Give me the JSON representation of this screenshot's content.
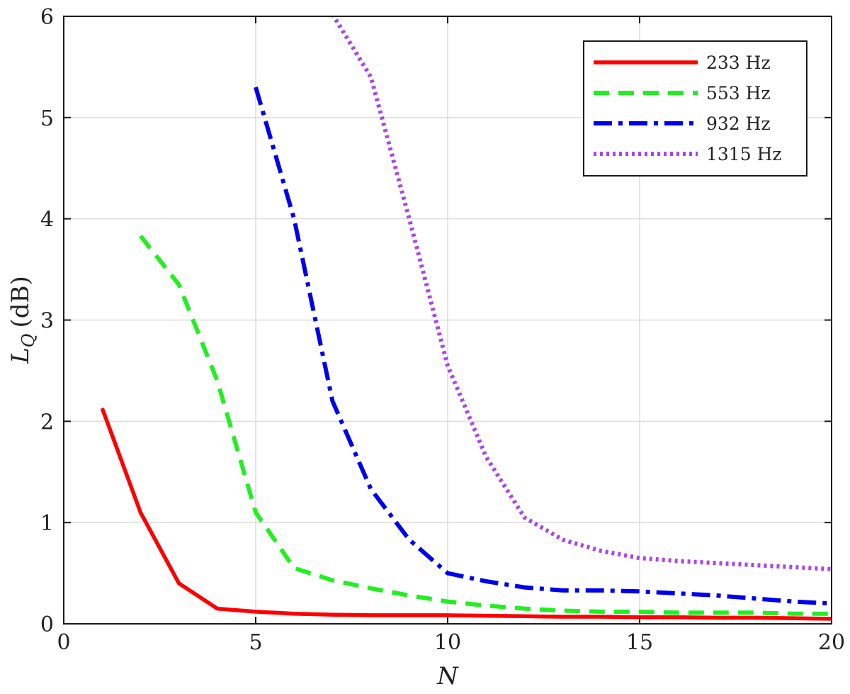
{
  "chart_data": {
    "type": "line",
    "xlabel": "N",
    "ylabel": "L",
    "ylabel_subscript": "Q",
    "ylabel_unit": "(dB)",
    "xlim": [
      0,
      20
    ],
    "ylim": [
      0,
      6
    ],
    "xticks": [
      0,
      5,
      10,
      15,
      20
    ],
    "yticks": [
      0,
      1,
      2,
      3,
      4,
      5,
      6
    ],
    "grid": true,
    "legend_position": "top-right",
    "series": [
      {
        "name": "233 Hz",
        "color": "#ff0000",
        "style": "solid",
        "points": [
          [
            1,
            2.13
          ],
          [
            2,
            1.1
          ],
          [
            3,
            0.4
          ],
          [
            4,
            0.15
          ],
          [
            5,
            0.12
          ],
          [
            6,
            0.1
          ],
          [
            7,
            0.09
          ],
          [
            8,
            0.085
          ],
          [
            9,
            0.085
          ],
          [
            10,
            0.085
          ],
          [
            11,
            0.08
          ],
          [
            12,
            0.075
          ],
          [
            13,
            0.07
          ],
          [
            14,
            0.07
          ],
          [
            15,
            0.065
          ],
          [
            16,
            0.065
          ],
          [
            17,
            0.06
          ],
          [
            18,
            0.06
          ],
          [
            19,
            0.055
          ],
          [
            20,
            0.05
          ]
        ]
      },
      {
        "name": "553 Hz",
        "color": "#22ee22",
        "style": "dashed",
        "points": [
          [
            2,
            3.83
          ],
          [
            3,
            3.35
          ],
          [
            4,
            2.4
          ],
          [
            5,
            1.1
          ],
          [
            6,
            0.55
          ],
          [
            7,
            0.43
          ],
          [
            8,
            0.35
          ],
          [
            9,
            0.28
          ],
          [
            10,
            0.22
          ],
          [
            11,
            0.18
          ],
          [
            12,
            0.15
          ],
          [
            13,
            0.13
          ],
          [
            14,
            0.12
          ],
          [
            15,
            0.12
          ],
          [
            16,
            0.11
          ],
          [
            17,
            0.11
          ],
          [
            18,
            0.11
          ],
          [
            19,
            0.1
          ],
          [
            20,
            0.1
          ]
        ]
      },
      {
        "name": "932 Hz",
        "color": "#0000ee",
        "style": "dashdot",
        "points": [
          [
            5,
            5.3
          ],
          [
            6,
            4.0
          ],
          [
            7,
            2.2
          ],
          [
            8,
            1.33
          ],
          [
            9,
            0.83
          ],
          [
            10,
            0.5
          ],
          [
            11,
            0.42
          ],
          [
            12,
            0.36
          ],
          [
            13,
            0.33
          ],
          [
            14,
            0.33
          ],
          [
            15,
            0.32
          ],
          [
            16,
            0.3
          ],
          [
            17,
            0.28
          ],
          [
            18,
            0.25
          ],
          [
            19,
            0.22
          ],
          [
            20,
            0.2
          ]
        ]
      },
      {
        "name": "1315 Hz",
        "color": "#aa44ee",
        "style": "dotted",
        "points": [
          [
            7,
            6.02
          ],
          [
            8,
            5.4
          ],
          [
            9,
            4.0
          ],
          [
            10,
            2.55
          ],
          [
            11,
            1.65
          ],
          [
            12,
            1.05
          ],
          [
            13,
            0.83
          ],
          [
            14,
            0.72
          ],
          [
            15,
            0.65
          ],
          [
            16,
            0.62
          ],
          [
            17,
            0.6
          ],
          [
            18,
            0.58
          ],
          [
            19,
            0.56
          ],
          [
            20,
            0.54
          ]
        ]
      }
    ]
  }
}
